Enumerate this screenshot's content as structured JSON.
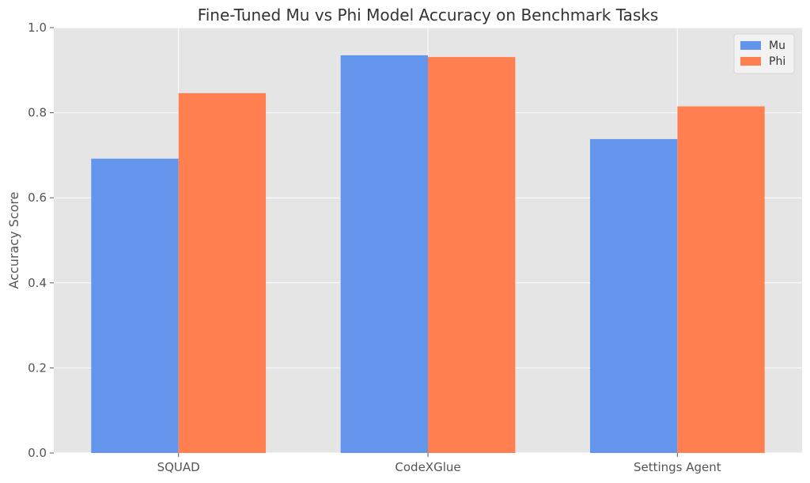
{
  "chart_data": {
    "type": "bar",
    "title": "Fine-Tuned Mu vs Phi Model Accuracy on Benchmark Tasks",
    "xlabel": "",
    "ylabel": "Accuracy Score",
    "categories": [
      "SQUAD",
      "CodeXGlue",
      "Settings Agent"
    ],
    "series": [
      {
        "name": "Mu",
        "color": "#6495ED",
        "values": [
          0.692,
          0.935,
          0.738
        ]
      },
      {
        "name": "Phi",
        "color": "#FF7F50",
        "values": [
          0.846,
          0.931,
          0.815
        ]
      }
    ],
    "ylim": [
      0,
      1.0
    ],
    "yticks": [
      "0.0",
      "0.2",
      "0.4",
      "0.6",
      "0.8",
      "1.0"
    ],
    "grid": true,
    "legend_position": "top-right",
    "background": "#E5E5E5"
  }
}
